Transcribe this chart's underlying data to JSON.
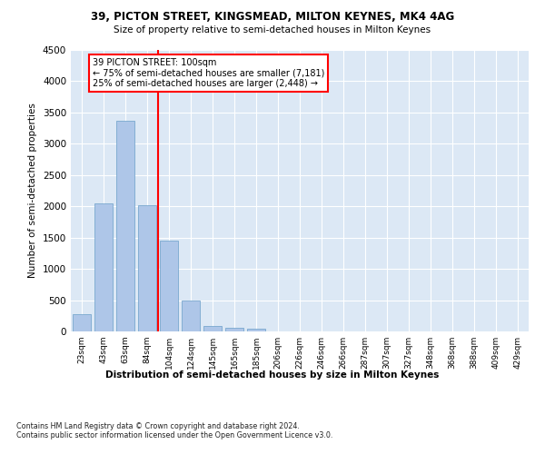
{
  "title_line1": "39, PICTON STREET, KINGSMEAD, MILTON KEYNES, MK4 4AG",
  "title_line2": "Size of property relative to semi-detached houses in Milton Keynes",
  "xlabel": "Distribution of semi-detached houses by size in Milton Keynes",
  "ylabel": "Number of semi-detached properties",
  "footnote": "Contains HM Land Registry data © Crown copyright and database right 2024.\nContains public sector information licensed under the Open Government Licence v3.0.",
  "bar_labels": [
    "23sqm",
    "43sqm",
    "63sqm",
    "84sqm",
    "104sqm",
    "124sqm",
    "145sqm",
    "165sqm",
    "185sqm",
    "206sqm",
    "226sqm",
    "246sqm",
    "266sqm",
    "287sqm",
    "307sqm",
    "327sqm",
    "348sqm",
    "368sqm",
    "388sqm",
    "409sqm",
    "429sqm"
  ],
  "bar_values": [
    270,
    2040,
    3370,
    2020,
    1450,
    490,
    80,
    55,
    50,
    0,
    0,
    0,
    0,
    0,
    0,
    0,
    0,
    0,
    0,
    0,
    0
  ],
  "bar_color": "#aec6e8",
  "bar_edge_color": "#6a9ec8",
  "vline_color": "red",
  "vline_x_index": 4,
  "annotation_title": "39 PICTON STREET: 100sqm",
  "annotation_line1": "← 75% of semi-detached houses are smaller (7,181)",
  "annotation_line2": "25% of semi-detached houses are larger (2,448) →",
  "annotation_box_color": "white",
  "annotation_edge_color": "red",
  "ylim": [
    0,
    4500
  ],
  "yticks": [
    0,
    500,
    1000,
    1500,
    2000,
    2500,
    3000,
    3500,
    4000,
    4500
  ],
  "plot_bg_color": "#dce8f5",
  "fig_bg_color": "white",
  "grid_color": "white"
}
